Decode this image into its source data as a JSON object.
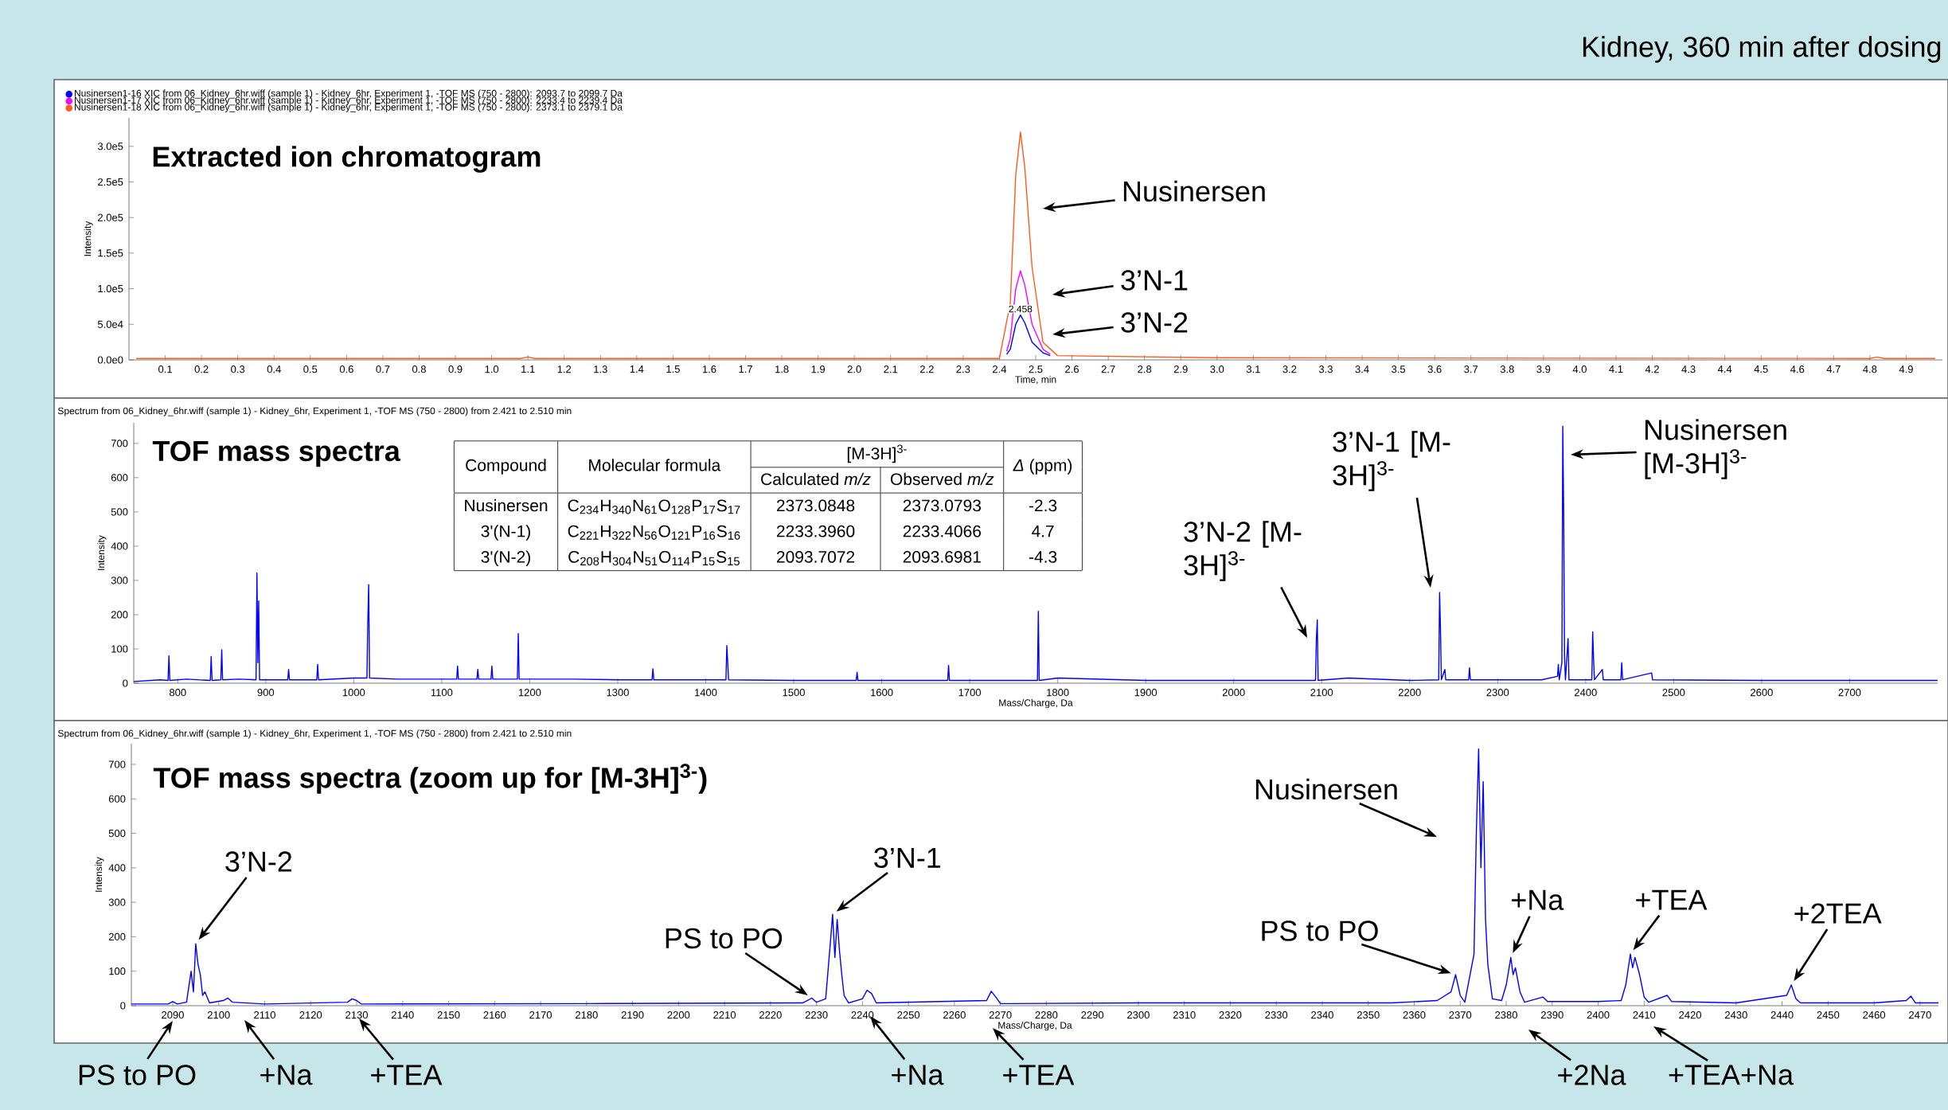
{
  "chart_data": [
    {
      "type": "line",
      "title": "Extracted ion chromatogram",
      "subtitle": "Kidney,  360 min after dosing",
      "xlabel": "Time, min",
      "ylabel": "Intensity",
      "legend": "top left",
      "x": [
        0.02,
        1.08,
        1.1,
        1.12,
        2.4,
        2.43,
        2.445,
        2.458,
        2.47,
        2.49,
        2.52,
        2.56,
        3.0,
        4.8,
        4.82,
        4.84,
        4.98
      ],
      "series": [
        {
          "name": "Nusinersen1-16 XIC from 06_Kidney_6hr.wiff (sample 1) - Kidney_6hr, Experiment 1, -TOF MS (750 - 2800): 2093.7 to 2099.7 Da",
          "color": "#0000ff",
          "x": [
            2.42,
            2.43,
            2.445,
            2.458,
            2.47,
            2.49,
            2.52,
            2.54
          ],
          "values": [
            8000,
            15000,
            50000,
            63000,
            52000,
            25000,
            10000,
            6000
          ]
        },
        {
          "name": "Nusinersen1-17 XIC from 06_Kidney_6hr.wiff (sample 1) - Kidney_6hr, Experiment 1, -TOF MS (750 - 2800): 2233.4 to 2239.4 Da",
          "color": "#ff00ff",
          "x": [
            2.42,
            2.43,
            2.445,
            2.458,
            2.47,
            2.49,
            2.52,
            2.54
          ],
          "values": [
            12000,
            30000,
            100000,
            125000,
            105000,
            50000,
            15000,
            8000
          ]
        },
        {
          "name": "Nusinersen1-18 XIC from 06_Kidney_6hr.wiff (sample 1) - Kidney_6hr, Experiment 1, -TOF MS (750 - 2800): 2373.1 to 2379.1 Da",
          "color": "#ff5a1e",
          "values": [
            2000,
            2000,
            4000,
            2000,
            2000,
            80000,
            260000,
            320000,
            270000,
            130000,
            25000,
            6000,
            3000,
            2000,
            4000,
            2000,
            2000
          ]
        }
      ],
      "xlim": [
        0,
        5
      ],
      "ylim": [
        0,
        340000
      ],
      "xticks": [
        0.1,
        0.2,
        0.3,
        0.4,
        0.5,
        0.6,
        0.7,
        0.8,
        0.9,
        {
          "value": 1,
          "label": "1.0"
        },
        1.1,
        1.2,
        1.3,
        1.4,
        1.5,
        1.6,
        1.7,
        1.8,
        1.9,
        {
          "value": 2,
          "label": "2.0"
        },
        2.1,
        2.2,
        2.3,
        2.4,
        2.5,
        2.6,
        2.7,
        2.8,
        2.9,
        {
          "value": 3,
          "label": "3.0"
        },
        3.1,
        3.2,
        3.3,
        3.4,
        3.5,
        3.6,
        3.7,
        3.8,
        3.9,
        {
          "value": 4,
          "label": "4.0"
        },
        4.1,
        4.2,
        4.3,
        4.4,
        4.5,
        4.6,
        4.7,
        4.8,
        4.9
      ],
      "yticks": [
        {
          "value": 0,
          "label": "0.0e0"
        },
        {
          "value": 50000,
          "label": "5.0e4"
        },
        {
          "value": 100000,
          "label": "1.0e5"
        },
        {
          "value": 150000,
          "label": "1.5e5"
        },
        {
          "value": 200000,
          "label": "2.0e5"
        },
        {
          "value": 250000,
          "label": "2.5e5"
        },
        {
          "value": 300000,
          "label": "3.0e5"
        }
      ],
      "annotations": [
        "Nusinersen",
        "3’N-1",
        "3’N-2",
        {
          "text": "2.458",
          "x": 2.458,
          "y": 63000
        }
      ]
    },
    {
      "type": "line",
      "title": "TOF mass spectra",
      "subtitle": "Spectrum from 06_Kidney_6hr.wiff (sample 1) - Kidney_6hr, Experiment 1, -TOF MS (750 - 2800) from 2.421 to 2.510 min",
      "xlabel": "Mass/Charge, Da",
      "ylabel": "Intensity",
      "x": [
        750,
        780,
        789,
        790,
        791,
        810,
        837,
        838,
        839,
        849,
        850,
        851,
        870,
        889,
        890,
        891,
        892,
        893,
        925,
        926,
        927,
        958,
        959,
        960,
        1000,
        1015,
        1016,
        1017,
        1018,
        1050,
        1117,
        1118,
        1119,
        1140,
        1141,
        1142,
        1156,
        1157,
        1158,
        1186,
        1187,
        1188,
        1250,
        1300,
        1339,
        1340,
        1341,
        1423,
        1424,
        1425,
        1426,
        1500,
        1571,
        1572,
        1573,
        1675,
        1676,
        1677,
        1777,
        1778,
        1779,
        1800,
        1900,
        2000,
        2093,
        2094,
        2095,
        2096,
        2130,
        2200,
        2233,
        2234,
        2235,
        2236,
        2240,
        2241,
        2267,
        2268,
        2269,
        2350,
        2368,
        2369,
        2370,
        2373,
        2374,
        2375,
        2376,
        2377,
        2380,
        2381,
        2407,
        2408,
        2409,
        2410,
        2419,
        2420,
        2440,
        2441,
        2442,
        2475,
        2476,
        2600,
        2800
      ],
      "series": [
        {
          "color": "#0000ff",
          "values": [
            5,
            10,
            8,
            80,
            8,
            12,
            8,
            78,
            8,
            10,
            98,
            10,
            12,
            10,
            322,
            60,
            240,
            10,
            10,
            40,
            10,
            10,
            55,
            10,
            15,
            15,
            180,
            288,
            15,
            12,
            12,
            50,
            12,
            12,
            40,
            12,
            12,
            50,
            12,
            12,
            145,
            12,
            12,
            10,
            10,
            42,
            10,
            10,
            110,
            60,
            10,
            8,
            8,
            32,
            8,
            8,
            52,
            8,
            8,
            210,
            8,
            15,
            8,
            8,
            8,
            130,
            185,
            8,
            15,
            8,
            10,
            265,
            160,
            10,
            40,
            10,
            10,
            45,
            10,
            10,
            20,
            55,
            10,
            60,
            750,
            500,
            80,
            10,
            130,
            10,
            10,
            150,
            70,
            10,
            40,
            10,
            10,
            60,
            10,
            30,
            10,
            8,
            8
          ]
        }
      ],
      "xlim": [
        750,
        2800
      ],
      "ylim": [
        0,
        760
      ],
      "xticks": [
        800,
        900,
        1000,
        1100,
        1200,
        1300,
        1400,
        1500,
        1600,
        1700,
        1800,
        1900,
        2000,
        2100,
        2200,
        2300,
        2400,
        2500,
        2600,
        2700
      ],
      "yticks": [
        0,
        100,
        200,
        300,
        400,
        500,
        600,
        700
      ],
      "annotations": [
        "3’N-2 [M-3H]$^{3-}$",
        "3’N-1 [M-3H]$^{3-}$",
        "Nusinersen [M-3H]$^{3-}$"
      ]
    },
    {
      "type": "other",
      "annotations": [
        "Compound",
        "Molecular formula",
        "[M-3H]$^{3-}$",
        "Calculated *m/z*",
        "Observed *m/z*",
        "*Δ* (ppm)",
        "Nusinersen",
        "C$_{234}$H$_{340}$N$_{61}$O$_{128}$P$_{17}$S$_{17}$",
        "2373.0848",
        "2373.0793",
        "-2.3",
        "3'(N-1)",
        "C$_{221}$H$_{322}$N$_{56}$O$_{121}$P$_{16}$S$_{16}$",
        "2233.3960",
        "2233.4066",
        "4.7",
        "3'(N-2)",
        "C$_{208}$H$_{304}$N$_{51}$O$_{114}$P$_{15}$S$_{15}$",
        "2093.7072",
        "2093.6981",
        "-4.3"
      ]
    },
    {
      "type": "line",
      "title": "TOF mass spectra (zoom up for [M-3H]$^{3-}$)",
      "subtitle": "Spectrum from 06_Kidney_6hr.wiff (sample 1) - Kidney_6hr, Experiment 1, -TOF MS (750 - 2800) from 2.421 to 2.510 min",
      "xlabel": "Mass/Charge, Da",
      "ylabel": "Intensity",
      "x": [
        2081,
        2089,
        2090,
        2091,
        2093,
        2094,
        2094.5,
        2095,
        2095.5,
        2096,
        2096.5,
        2097,
        2098,
        2101,
        2102,
        2103,
        2110,
        2128,
        2129,
        2130,
        2131,
        2180,
        2227,
        2229,
        2230,
        2232,
        2233,
        2233.5,
        2234,
        2234.5,
        2235,
        2235.5,
        2236,
        2237,
        2240,
        2241,
        2242,
        2243,
        2267,
        2268,
        2269,
        2270,
        2300,
        2355,
        2365,
        2368,
        2369,
        2370,
        2371,
        2373,
        2373.5,
        2374,
        2374.5,
        2375,
        2375.5,
        2376,
        2377,
        2379,
        2380,
        2381,
        2381.5,
        2382,
        2383,
        2384,
        2388,
        2389,
        2400,
        2405,
        2406,
        2407,
        2407.5,
        2408,
        2409,
        2410,
        2411,
        2415,
        2416,
        2430,
        2441,
        2442,
        2443,
        2444,
        2460,
        2467,
        2468,
        2469,
        2474
      ],
      "series": [
        {
          "color": "#0000ff",
          "values": [
            5,
            5,
            12,
            5,
            10,
            100,
            40,
            180,
            120,
            90,
            30,
            40,
            8,
            15,
            22,
            10,
            5,
            10,
            20,
            15,
            5,
            6,
            8,
            22,
            10,
            20,
            180,
            265,
            140,
            250,
            160,
            90,
            30,
            8,
            20,
            45,
            35,
            8,
            15,
            42,
            25,
            6,
            8,
            8,
            15,
            40,
            90,
            30,
            10,
            150,
            500,
            745,
            400,
            650,
            250,
            120,
            20,
            15,
            60,
            140,
            90,
            110,
            40,
            10,
            25,
            12,
            12,
            15,
            60,
            150,
            110,
            140,
            90,
            25,
            10,
            30,
            12,
            8,
            30,
            60,
            20,
            8,
            8,
            15,
            28,
            8,
            8
          ]
        }
      ],
      "xlim": [
        2081,
        2474
      ],
      "ylim": [
        0,
        760
      ],
      "xticks": [
        2090,
        2100,
        2110,
        2120,
        2130,
        2140,
        2150,
        2160,
        2170,
        2180,
        2190,
        2200,
        2210,
        2220,
        2230,
        2240,
        2250,
        2260,
        2270,
        2280,
        2290,
        2300,
        2310,
        2320,
        2330,
        2340,
        2350,
        2360,
        2370,
        2380,
        2390,
        2400,
        2410,
        2420,
        2430,
        2440,
        2450,
        2460,
        2470
      ],
      "yticks": [
        0,
        100,
        200,
        300,
        400,
        500,
        600,
        700
      ],
      "annotations": [
        {
          "text": "3’N-2",
          "x": 2095,
          "y": 180
        },
        {
          "text": "3’N-1",
          "x": 2233.5,
          "y": 265
        },
        {
          "text": "PS to PO",
          "x": 2229,
          "y": 22
        },
        "Nusinersen",
        {
          "text": "PS to PO",
          "x": 2369,
          "y": 90
        },
        {
          "text": "+Na",
          "x": 2381,
          "y": 140
        },
        {
          "text": "+TEA",
          "x": 2407,
          "y": 150
        },
        {
          "text": "+2TEA",
          "x": 2442,
          "y": 60
        },
        "PS to PO",
        "+Na",
        "+TEA",
        "+Na",
        "+TEA",
        "+2Na",
        "+TEA+Na"
      ]
    }
  ]
}
